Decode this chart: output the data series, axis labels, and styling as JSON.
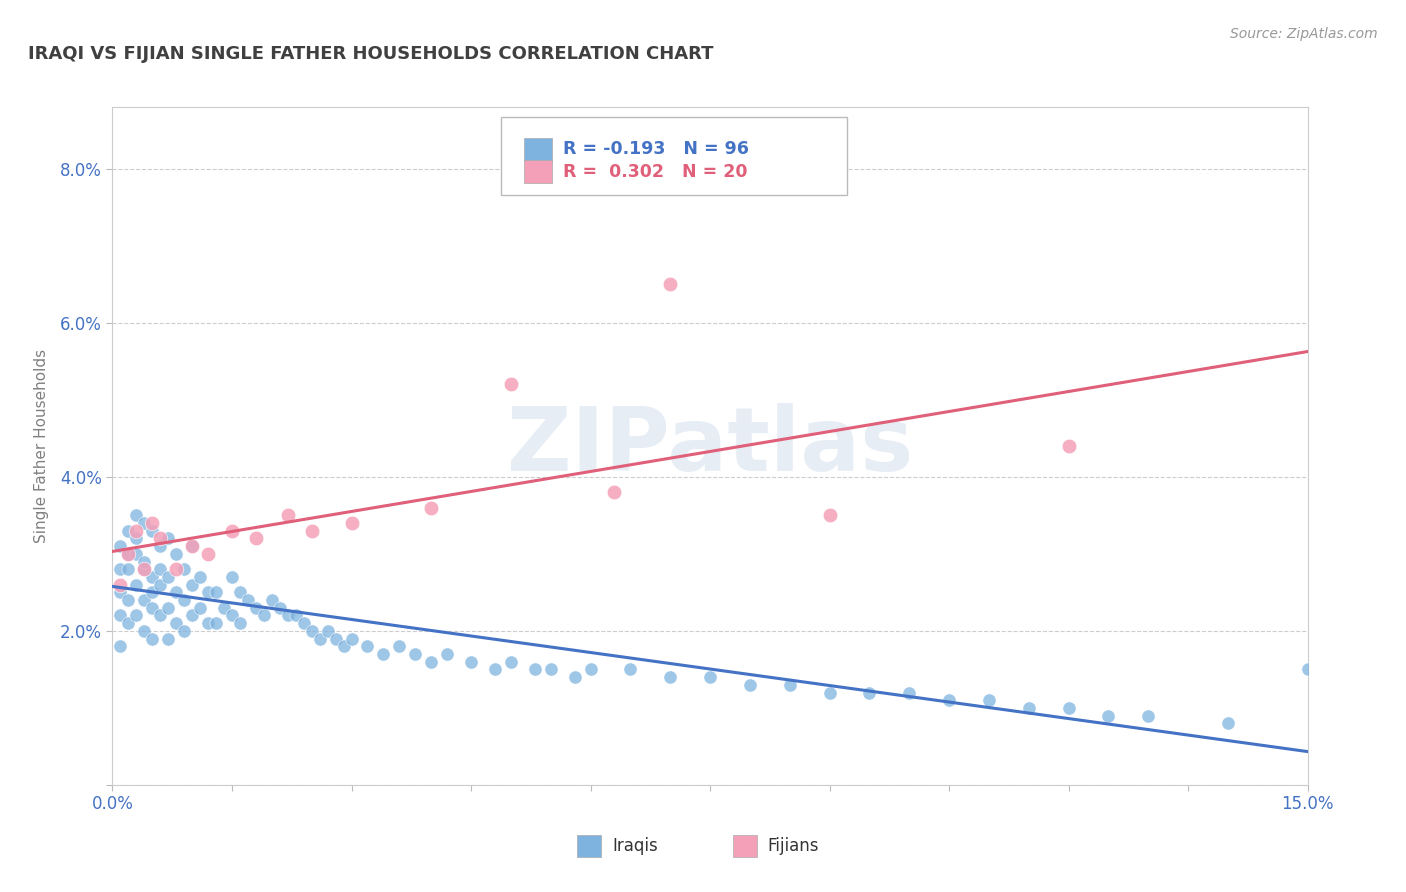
{
  "title": "IRAQI VS FIJIAN SINGLE FATHER HOUSEHOLDS CORRELATION CHART",
  "source": "Source: ZipAtlas.com",
  "ylabel": "Single Father Households",
  "xlim": [
    0.0,
    0.15
  ],
  "ylim": [
    0.0,
    0.088
  ],
  "xtick_positions": [
    0.0,
    0.015,
    0.03,
    0.045,
    0.06,
    0.075,
    0.09,
    0.105,
    0.12,
    0.135,
    0.15
  ],
  "xtick_labels": [
    "0.0%",
    "",
    "",
    "",
    "",
    "",
    "",
    "",
    "",
    "",
    "15.0%"
  ],
  "ytick_positions": [
    0.0,
    0.02,
    0.04,
    0.06,
    0.08
  ],
  "ytick_labels": [
    "",
    "2.0%",
    "4.0%",
    "6.0%",
    "8.0%"
  ],
  "iraqi_R": -0.193,
  "iraqi_N": 96,
  "fijian_R": 0.302,
  "fijian_N": 20,
  "iraqi_color": "#7eb3e0",
  "fijian_color": "#f4a0b8",
  "iraqi_line_color": "#4472c4",
  "fijian_line_color": "#e0607a",
  "background_color": "#ffffff",
  "grid_color": "#c8c8c8",
  "title_color": "#404040",
  "axis_label_color": "#808080",
  "tick_label_color": "#4472c4",
  "watermark_text": "ZIPatlas",
  "iraqi_x": [
    0.001,
    0.001,
    0.001,
    0.001,
    0.001,
    0.002,
    0.002,
    0.002,
    0.002,
    0.002,
    0.003,
    0.003,
    0.003,
    0.003,
    0.003,
    0.004,
    0.004,
    0.004,
    0.004,
    0.004,
    0.005,
    0.005,
    0.005,
    0.005,
    0.005,
    0.006,
    0.006,
    0.006,
    0.006,
    0.007,
    0.007,
    0.007,
    0.007,
    0.008,
    0.008,
    0.008,
    0.009,
    0.009,
    0.009,
    0.01,
    0.01,
    0.01,
    0.011,
    0.011,
    0.012,
    0.012,
    0.013,
    0.013,
    0.014,
    0.015,
    0.015,
    0.016,
    0.016,
    0.017,
    0.018,
    0.019,
    0.02,
    0.021,
    0.022,
    0.023,
    0.024,
    0.025,
    0.026,
    0.027,
    0.028,
    0.029,
    0.03,
    0.032,
    0.034,
    0.036,
    0.038,
    0.04,
    0.042,
    0.045,
    0.048,
    0.05,
    0.053,
    0.055,
    0.058,
    0.06,
    0.065,
    0.07,
    0.075,
    0.08,
    0.085,
    0.09,
    0.095,
    0.1,
    0.105,
    0.11,
    0.115,
    0.12,
    0.125,
    0.13,
    0.14,
    0.15
  ],
  "iraqi_y": [
    0.028,
    0.025,
    0.022,
    0.031,
    0.018,
    0.033,
    0.028,
    0.024,
    0.03,
    0.021,
    0.035,
    0.03,
    0.026,
    0.022,
    0.032,
    0.034,
    0.028,
    0.024,
    0.02,
    0.029,
    0.033,
    0.027,
    0.023,
    0.025,
    0.019,
    0.031,
    0.026,
    0.022,
    0.028,
    0.032,
    0.027,
    0.023,
    0.019,
    0.03,
    0.025,
    0.021,
    0.028,
    0.024,
    0.02,
    0.031,
    0.026,
    0.022,
    0.027,
    0.023,
    0.025,
    0.021,
    0.025,
    0.021,
    0.023,
    0.027,
    0.022,
    0.025,
    0.021,
    0.024,
    0.023,
    0.022,
    0.024,
    0.023,
    0.022,
    0.022,
    0.021,
    0.02,
    0.019,
    0.02,
    0.019,
    0.018,
    0.019,
    0.018,
    0.017,
    0.018,
    0.017,
    0.016,
    0.017,
    0.016,
    0.015,
    0.016,
    0.015,
    0.015,
    0.014,
    0.015,
    0.015,
    0.014,
    0.014,
    0.013,
    0.013,
    0.012,
    0.012,
    0.012,
    0.011,
    0.011,
    0.01,
    0.01,
    0.009,
    0.009,
    0.008,
    0.015
  ],
  "fijian_x": [
    0.001,
    0.002,
    0.003,
    0.004,
    0.005,
    0.006,
    0.008,
    0.01,
    0.012,
    0.015,
    0.018,
    0.022,
    0.025,
    0.03,
    0.04,
    0.05,
    0.063,
    0.07,
    0.09,
    0.12
  ],
  "fijian_y": [
    0.026,
    0.03,
    0.033,
    0.028,
    0.034,
    0.032,
    0.028,
    0.031,
    0.03,
    0.033,
    0.032,
    0.035,
    0.033,
    0.034,
    0.036,
    0.052,
    0.038,
    0.065,
    0.035,
    0.044
  ]
}
